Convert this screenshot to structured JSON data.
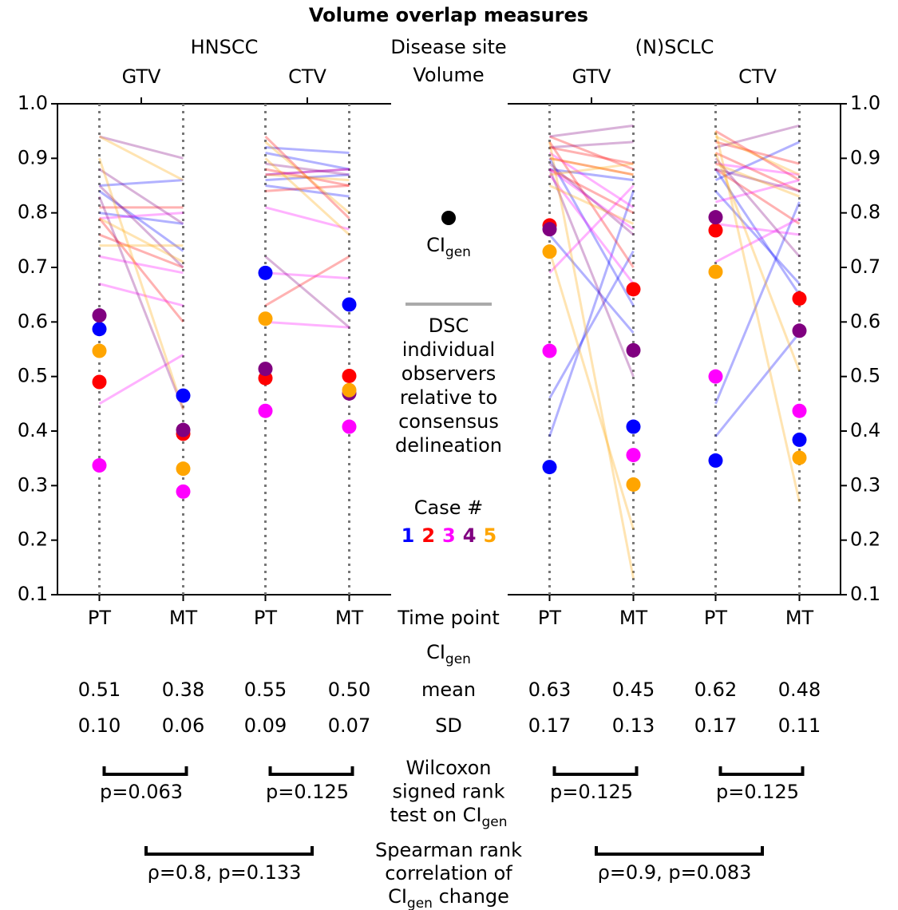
{
  "chart_data": {
    "type": "paired-dot",
    "title": "Volume overlap measures",
    "row_labels": {
      "site": "Disease site",
      "volume": "Volume",
      "time_point": "Time point",
      "stat": {
        "text": "CI",
        "sub": "gen"
      },
      "mean": "mean",
      "sd": "SD"
    },
    "ylim": [
      0.1,
      1.0
    ],
    "yticks": [
      0.1,
      0.2,
      0.3,
      0.4,
      0.5,
      0.6,
      0.7,
      0.8,
      0.9,
      {
        "value": 1,
        "label": "1.0"
      }
    ],
    "cases": {
      "title": "Case #",
      "names": [
        "1",
        "2",
        "3",
        "4",
        "5"
      ],
      "colors": [
        "#0000ff",
        "#ff0000",
        "#ff00ff",
        "#800080",
        "#ffa500"
      ]
    },
    "legend": {
      "ci": {
        "text": "CI",
        "sub": "gen"
      },
      "dsc": [
        "DSC",
        "individual",
        "observers",
        "relative to",
        "consensus",
        "delineation"
      ]
    },
    "wilcoxon_label": [
      "Wilcoxon",
      "signed rank",
      {
        "text": "test on CI",
        "sub": "gen"
      }
    ],
    "spearman_label": [
      "Spearman rank",
      "correlation of",
      {
        "text": "CI",
        "sub": "gen",
        "after": " change"
      }
    ],
    "panels": [
      {
        "site": "HNSCC",
        "spearman": "ρ=0.8, p=0.133",
        "volumes": [
          {
            "name": "GTV",
            "time_points": [
              "PT",
              "MT"
            ],
            "ci_gen": [
              [
                0.587,
                0.49,
                0.337,
                0.612,
                0.547
              ],
              [
                0.465,
                0.395,
                0.289,
                0.402,
                0.331
              ]
            ],
            "observers": [
              [
                [
                  0.85,
                  0.86
                ],
                [
                  0.84,
                  0.73
                ],
                [
                  0.8,
                  0.78
                ]
              ],
              [
                [
                  0.81,
                  0.81
                ],
                [
                  0.79,
                  0.6
                ],
                [
                  0.76,
                  0.7
                ]
              ],
              [
                [
                  0.72,
                  0.69
                ],
                [
                  0.67,
                  0.63
                ],
                [
                  0.45,
                  0.54
                ],
                [
                  0.79,
                  0.8
                ]
              ],
              [
                [
                  0.85,
                  0.7
                ],
                [
                  0.88,
                  0.78
                ],
                [
                  0.83,
                  0.44
                ],
                [
                  0.94,
                  0.9
                ]
              ],
              [
                [
                  0.94,
                  0.86
                ],
                [
                  0.74,
                  0.74
                ],
                [
                  0.9,
                  0.44
                ],
                [
                  0.79,
                  0.71
                ]
              ]
            ],
            "mean": [
              0.51,
              0.38
            ],
            "sd": [
              {
                "value": 0.1,
                "label": "0.10"
              },
              0.06
            ],
            "wilcoxon": "p=0.063"
          },
          {
            "name": "CTV",
            "time_points": [
              "PT",
              "MT"
            ],
            "ci_gen": [
              [
                0.69,
                0.497,
                0.437,
                0.514,
                0.606
              ],
              [
                0.632,
                0.501,
                0.408,
                0.469,
                0.475
              ]
            ],
            "observers": [
              [
                [
                  0.92,
                  0.91
                ],
                [
                  0.85,
                  0.83
                ],
                [
                  0.91,
                  0.88
                ],
                [
                  0.86,
                  0.87
                ]
              ],
              [
                [
                  0.94,
                  0.79
                ],
                [
                  0.63,
                  0.72
                ],
                [
                  0.88,
                  0.85
                ],
                [
                  0.84,
                  0.85
                ]
              ],
              [
                [
                  0.69,
                  0.68
                ],
                [
                  0.6,
                  0.59
                ],
                [
                  0.81,
                  0.77
                ],
                [
                  0.87,
                  0.88
                ]
              ],
              [
                [
                  0.87,
                  0.88
                ],
                [
                  0.72,
                  0.59
                ],
                [
                  0.89,
                  0.87
                ]
              ],
              [
                [
                  0.9,
                  0.76
                ],
                [
                  0.93,
                  0.8
                ],
                [
                  0.87,
                  0.86
                ]
              ]
            ],
            "mean": [
              0.55,
              {
                "value": 0.5,
                "label": "0.50"
              }
            ],
            "sd": [
              0.09,
              0.07
            ],
            "wilcoxon": "p=0.125"
          }
        ]
      },
      {
        "site": "(N)SCLC",
        "spearman": "ρ=0.9, p=0.083",
        "volumes": [
          {
            "name": "GTV",
            "time_points": [
              "PT",
              "MT"
            ],
            "ci_gen": [
              [
                0.334,
                0.777,
                0.547,
                0.77,
                0.729
              ],
              [
                0.408,
                0.66,
                0.356,
                0.548,
                0.302
              ]
            ],
            "observers": [
              [
                [
                  0.88,
                  0.86
                ],
                [
                  0.46,
                  0.73
                ],
                [
                  0.39,
                  0.84
                ],
                [
                  0.9,
                  0.63
                ],
                [
                  0.76,
                  0.58
                ]
              ],
              [
                [
                  0.94,
                  0.88
                ],
                [
                  0.92,
                  0.89
                ],
                [
                  0.9,
                  0.87
                ],
                [
                  0.88,
                  0.8
                ],
                [
                  0.93,
                  0.7
                ]
              ],
              [
                [
                  0.87,
                  0.67
                ],
                [
                  0.69,
                  0.85
                ],
                [
                  0.91,
                  0.81
                ],
                [
                  0.88,
                  0.77
                ]
              ],
              [
                [
                  0.94,
                  0.96
                ],
                [
                  0.92,
                  0.93
                ],
                [
                  0.88,
                  0.5
                ],
                [
                  0.89,
                  0.76
                ]
              ],
              [
                [
                  0.93,
                  0.13
                ],
                [
                  0.73,
                  0.22
                ],
                [
                  0.9,
                  0.87
                ],
                [
                  0.85,
                  0.78
                ],
                [
                  0.87,
                  0.89
                ]
              ]
            ],
            "mean": [
              0.63,
              0.45
            ],
            "sd": [
              0.17,
              0.13
            ],
            "wilcoxon": "p=0.125"
          },
          {
            "name": "CTV",
            "time_points": [
              "PT",
              "MT"
            ],
            "ci_gen": [
              [
                0.346,
                0.768,
                0.5,
                0.792,
                0.692
              ],
              [
                0.384,
                0.643,
                0.437,
                0.584,
                0.351
              ]
            ],
            "observers": [
              [
                [
                  0.86,
                  0.93
                ],
                [
                  0.45,
                  0.82
                ],
                [
                  0.39,
                  0.58
                ],
                [
                  0.84,
                  0.67
                ],
                [
                  0.88,
                  0.65
                ]
              ],
              [
                [
                  0.95,
                  0.86
                ],
                [
                  0.91,
                  0.84
                ],
                [
                  0.93,
                  0.89
                ],
                [
                  0.88,
                  0.78
                ]
              ],
              [
                [
                  0.71,
                  0.79
                ],
                [
                  0.82,
                  0.86
                ],
                [
                  0.78,
                  0.76
                ],
                [
                  0.89,
                  0.87
                ]
              ],
              [
                [
                  0.92,
                  0.96
                ],
                [
                  0.9,
                  0.72
                ],
                [
                  0.88,
                  0.84
                ]
              ],
              [
                [
                  0.95,
                  0.27
                ],
                [
                  0.91,
                  0.51
                ],
                [
                  0.94,
                  0.87
                ],
                [
                  0.89,
                  0.83
                ]
              ]
            ],
            "mean": [
              0.62,
              0.48
            ],
            "sd": [
              0.17,
              0.11
            ],
            "wilcoxon": "p=0.125"
          }
        ]
      }
    ]
  }
}
